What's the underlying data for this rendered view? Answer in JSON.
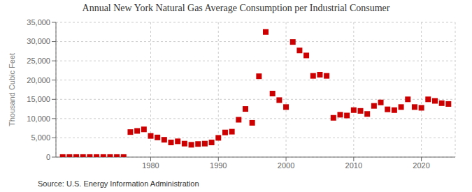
{
  "chart_data": {
    "type": "scatter",
    "title": "Annual New York Natural Gas Average Consumption per Industrial Consumer",
    "ylabel": "Thousand Cubic Feet",
    "annotations": [
      "Source: U.S. Energy Information Administration"
    ],
    "x": [
      1967,
      1968,
      1969,
      1970,
      1971,
      1972,
      1973,
      1974,
      1975,
      1976,
      1977,
      1978,
      1979,
      1980,
      1981,
      1982,
      1983,
      1984,
      1985,
      1986,
      1987,
      1988,
      1989,
      1990,
      1991,
      1992,
      1993,
      1994,
      1995,
      1996,
      1997,
      1998,
      1999,
      2000,
      2001,
      2002,
      2003,
      2004,
      2005,
      2006,
      2007,
      2008,
      2009,
      2010,
      2011,
      2012,
      2013,
      2014,
      2015,
      2016,
      2017,
      2018,
      2019,
      2020,
      2021,
      2022,
      2023,
      2024
    ],
    "values": [
      10,
      10,
      10,
      10,
      10,
      10,
      10,
      10,
      10,
      10,
      6500,
      6800,
      7200,
      5500,
      5100,
      4500,
      3800,
      4100,
      3500,
      3200,
      3400,
      3500,
      3800,
      5000,
      6400,
      6600,
      9700,
      12500,
      8900,
      21000,
      32500,
      16500,
      14800,
      13000,
      29900,
      27700,
      26400,
      21100,
      21400,
      21100,
      10200,
      11000,
      10800,
      12200,
      12000,
      11200,
      13300,
      14200,
      12400,
      12200,
      13000,
      15000,
      13000,
      12800,
      15000,
      14600,
      14000,
      13800
    ],
    "color": "#cc0000",
    "marker": "square",
    "xlim": [
      1966,
      2025
    ],
    "xticks": [
      1980,
      1990,
      2000,
      2010,
      2020
    ],
    "ylim": [
      0,
      35000
    ],
    "yticks": [
      0,
      {
        "value": 5000,
        "label": "5,000"
      },
      {
        "value": 10000,
        "label": "10,000"
      },
      {
        "value": 15000,
        "label": "15,000"
      },
      {
        "value": 20000,
        "label": "20,000"
      },
      {
        "value": 25000,
        "label": "25,000"
      },
      {
        "value": 30000,
        "label": "30,000"
      },
      {
        "value": 35000,
        "label": "35,000"
      }
    ],
    "grid": true
  }
}
